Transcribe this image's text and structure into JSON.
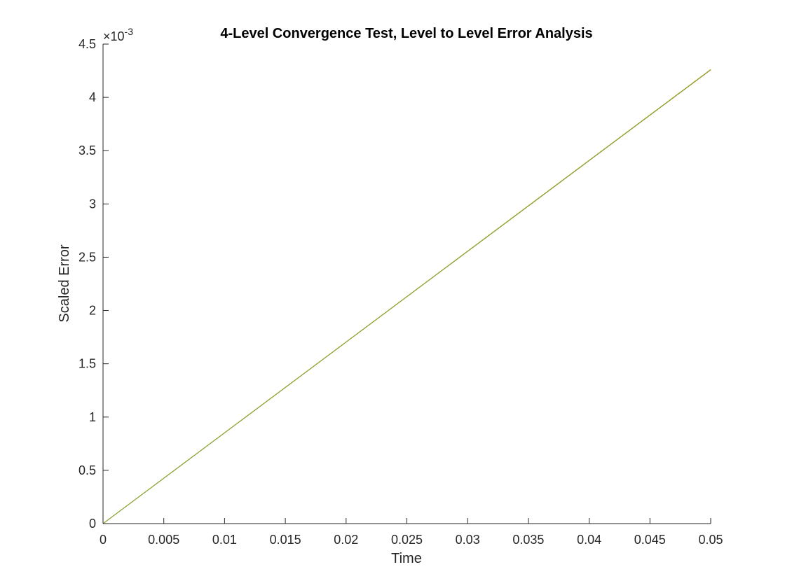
{
  "chart_data": {
    "type": "line",
    "title": "4-Level Convergence Test, Level to Level Error Analysis",
    "xlabel": "Time",
    "ylabel": "Scaled Error",
    "xlim": [
      0,
      0.05
    ],
    "ylim": [
      0,
      0.0045
    ],
    "y_exponent_label": "×10",
    "y_exponent_power": "-3",
    "x_ticks": [
      {
        "value": 0,
        "label": "0"
      },
      {
        "value": 0.005,
        "label": "0.005"
      },
      {
        "value": 0.01,
        "label": "0.01"
      },
      {
        "value": 0.015,
        "label": "0.015"
      },
      {
        "value": 0.02,
        "label": "0.02"
      },
      {
        "value": 0.025,
        "label": "0.025"
      },
      {
        "value": 0.03,
        "label": "0.03"
      },
      {
        "value": 0.035,
        "label": "0.035"
      },
      {
        "value": 0.04,
        "label": "0.04"
      },
      {
        "value": 0.045,
        "label": "0.045"
      },
      {
        "value": 0.05,
        "label": "0.05"
      }
    ],
    "y_ticks": [
      {
        "value": 0,
        "label": "0"
      },
      {
        "value": 0.0005,
        "label": "0.5"
      },
      {
        "value": 0.001,
        "label": "1"
      },
      {
        "value": 0.0015,
        "label": "1.5"
      },
      {
        "value": 0.002,
        "label": "2"
      },
      {
        "value": 0.0025,
        "label": "2.5"
      },
      {
        "value": 0.003,
        "label": "3"
      },
      {
        "value": 0.0035,
        "label": "3.5"
      },
      {
        "value": 0.004,
        "label": "4"
      },
      {
        "value": 0.0045,
        "label": "4.5"
      }
    ],
    "grid": false,
    "series": [
      {
        "color": "#0072BD",
        "x": [
          0,
          0.05
        ],
        "y": [
          0,
          0.00426
        ]
      },
      {
        "color": "#D95319",
        "x": [
          0,
          0.05
        ],
        "y": [
          0,
          0.004258
        ]
      },
      {
        "color": "#EDB120",
        "x": [
          0,
          0.05
        ],
        "y": [
          0,
          0.004262
        ]
      },
      {
        "color": "#77AC30",
        "x": [
          0,
          0.05
        ],
        "y": [
          0,
          0.00426
        ]
      }
    ]
  }
}
